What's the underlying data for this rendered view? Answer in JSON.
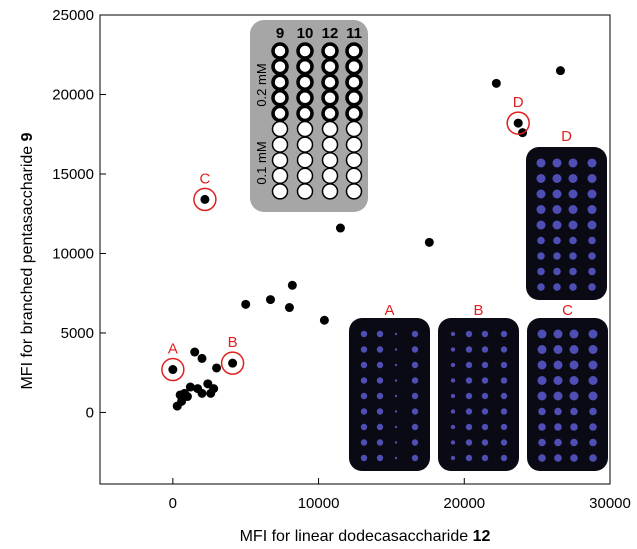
{
  "chart_data": {
    "type": "scatter",
    "xlabel": {
      "text": "MFI for linear dodecasaccharide ",
      "bold": "12"
    },
    "ylabel": {
      "text": "MFI for branched pentasaccharide ",
      "bold": "9"
    },
    "xlim": [
      -5000,
      30000
    ],
    "ylim": [
      -4500,
      25000
    ],
    "xticks": [
      0,
      10000,
      20000,
      30000
    ],
    "yticks": [
      0,
      5000,
      10000,
      15000,
      20000,
      25000
    ],
    "grid": false,
    "colors": {
      "points": "#000000",
      "annotation": "#e02020",
      "inset_bg": "#a6a6a6",
      "panel_bg": "#0a0a14",
      "spot": "#5a5ad0"
    },
    "points": [
      {
        "x": 0,
        "y": 2700
      },
      {
        "x": 4100,
        "y": 3100
      },
      {
        "x": 2200,
        "y": 13400
      },
      {
        "x": 23700,
        "y": 18200
      },
      {
        "x": 24000,
        "y": 17600
      },
      {
        "x": 22200,
        "y": 20700
      },
      {
        "x": 26600,
        "y": 21500
      },
      {
        "x": 11500,
        "y": 11600
      },
      {
        "x": 17600,
        "y": 10700
      },
      {
        "x": 10400,
        "y": 5800
      },
      {
        "x": 5000,
        "y": 6800
      },
      {
        "x": 6700,
        "y": 7100
      },
      {
        "x": 8000,
        "y": 6600
      },
      {
        "x": 8200,
        "y": 8000
      },
      {
        "x": 1500,
        "y": 3800
      },
      {
        "x": 2000,
        "y": 3400
      },
      {
        "x": 3000,
        "y": 2800
      },
      {
        "x": 1200,
        "y": 1600
      },
      {
        "x": 2000,
        "y": 1200
      },
      {
        "x": 2400,
        "y": 1800
      },
      {
        "x": 2800,
        "y": 1500
      },
      {
        "x": 2600,
        "y": 1200
      },
      {
        "x": 500,
        "y": 1100
      },
      {
        "x": 800,
        "y": 1200
      },
      {
        "x": 300,
        "y": 400
      },
      {
        "x": 600,
        "y": 700
      },
      {
        "x": 1000,
        "y": 1000
      },
      {
        "x": 1700,
        "y": 1500
      }
    ],
    "annotations": [
      {
        "label": "A",
        "x": 0,
        "y": 2700
      },
      {
        "label": "B",
        "x": 4100,
        "y": 3100
      },
      {
        "label": "C",
        "x": 2200,
        "y": 13400
      },
      {
        "label": "D",
        "x": 23700,
        "y": 18200
      }
    ],
    "inset_grid": {
      "columns": [
        "9",
        "10",
        "12",
        "11"
      ],
      "rows": 10,
      "concentrations": [
        {
          "label": "0.2 mM",
          "rows": 5
        },
        {
          "label": "0.1 mM",
          "rows": 5
        }
      ]
    },
    "array_panels": [
      {
        "label": "A"
      },
      {
        "label": "B"
      },
      {
        "label": "C"
      },
      {
        "label": "D"
      }
    ]
  }
}
